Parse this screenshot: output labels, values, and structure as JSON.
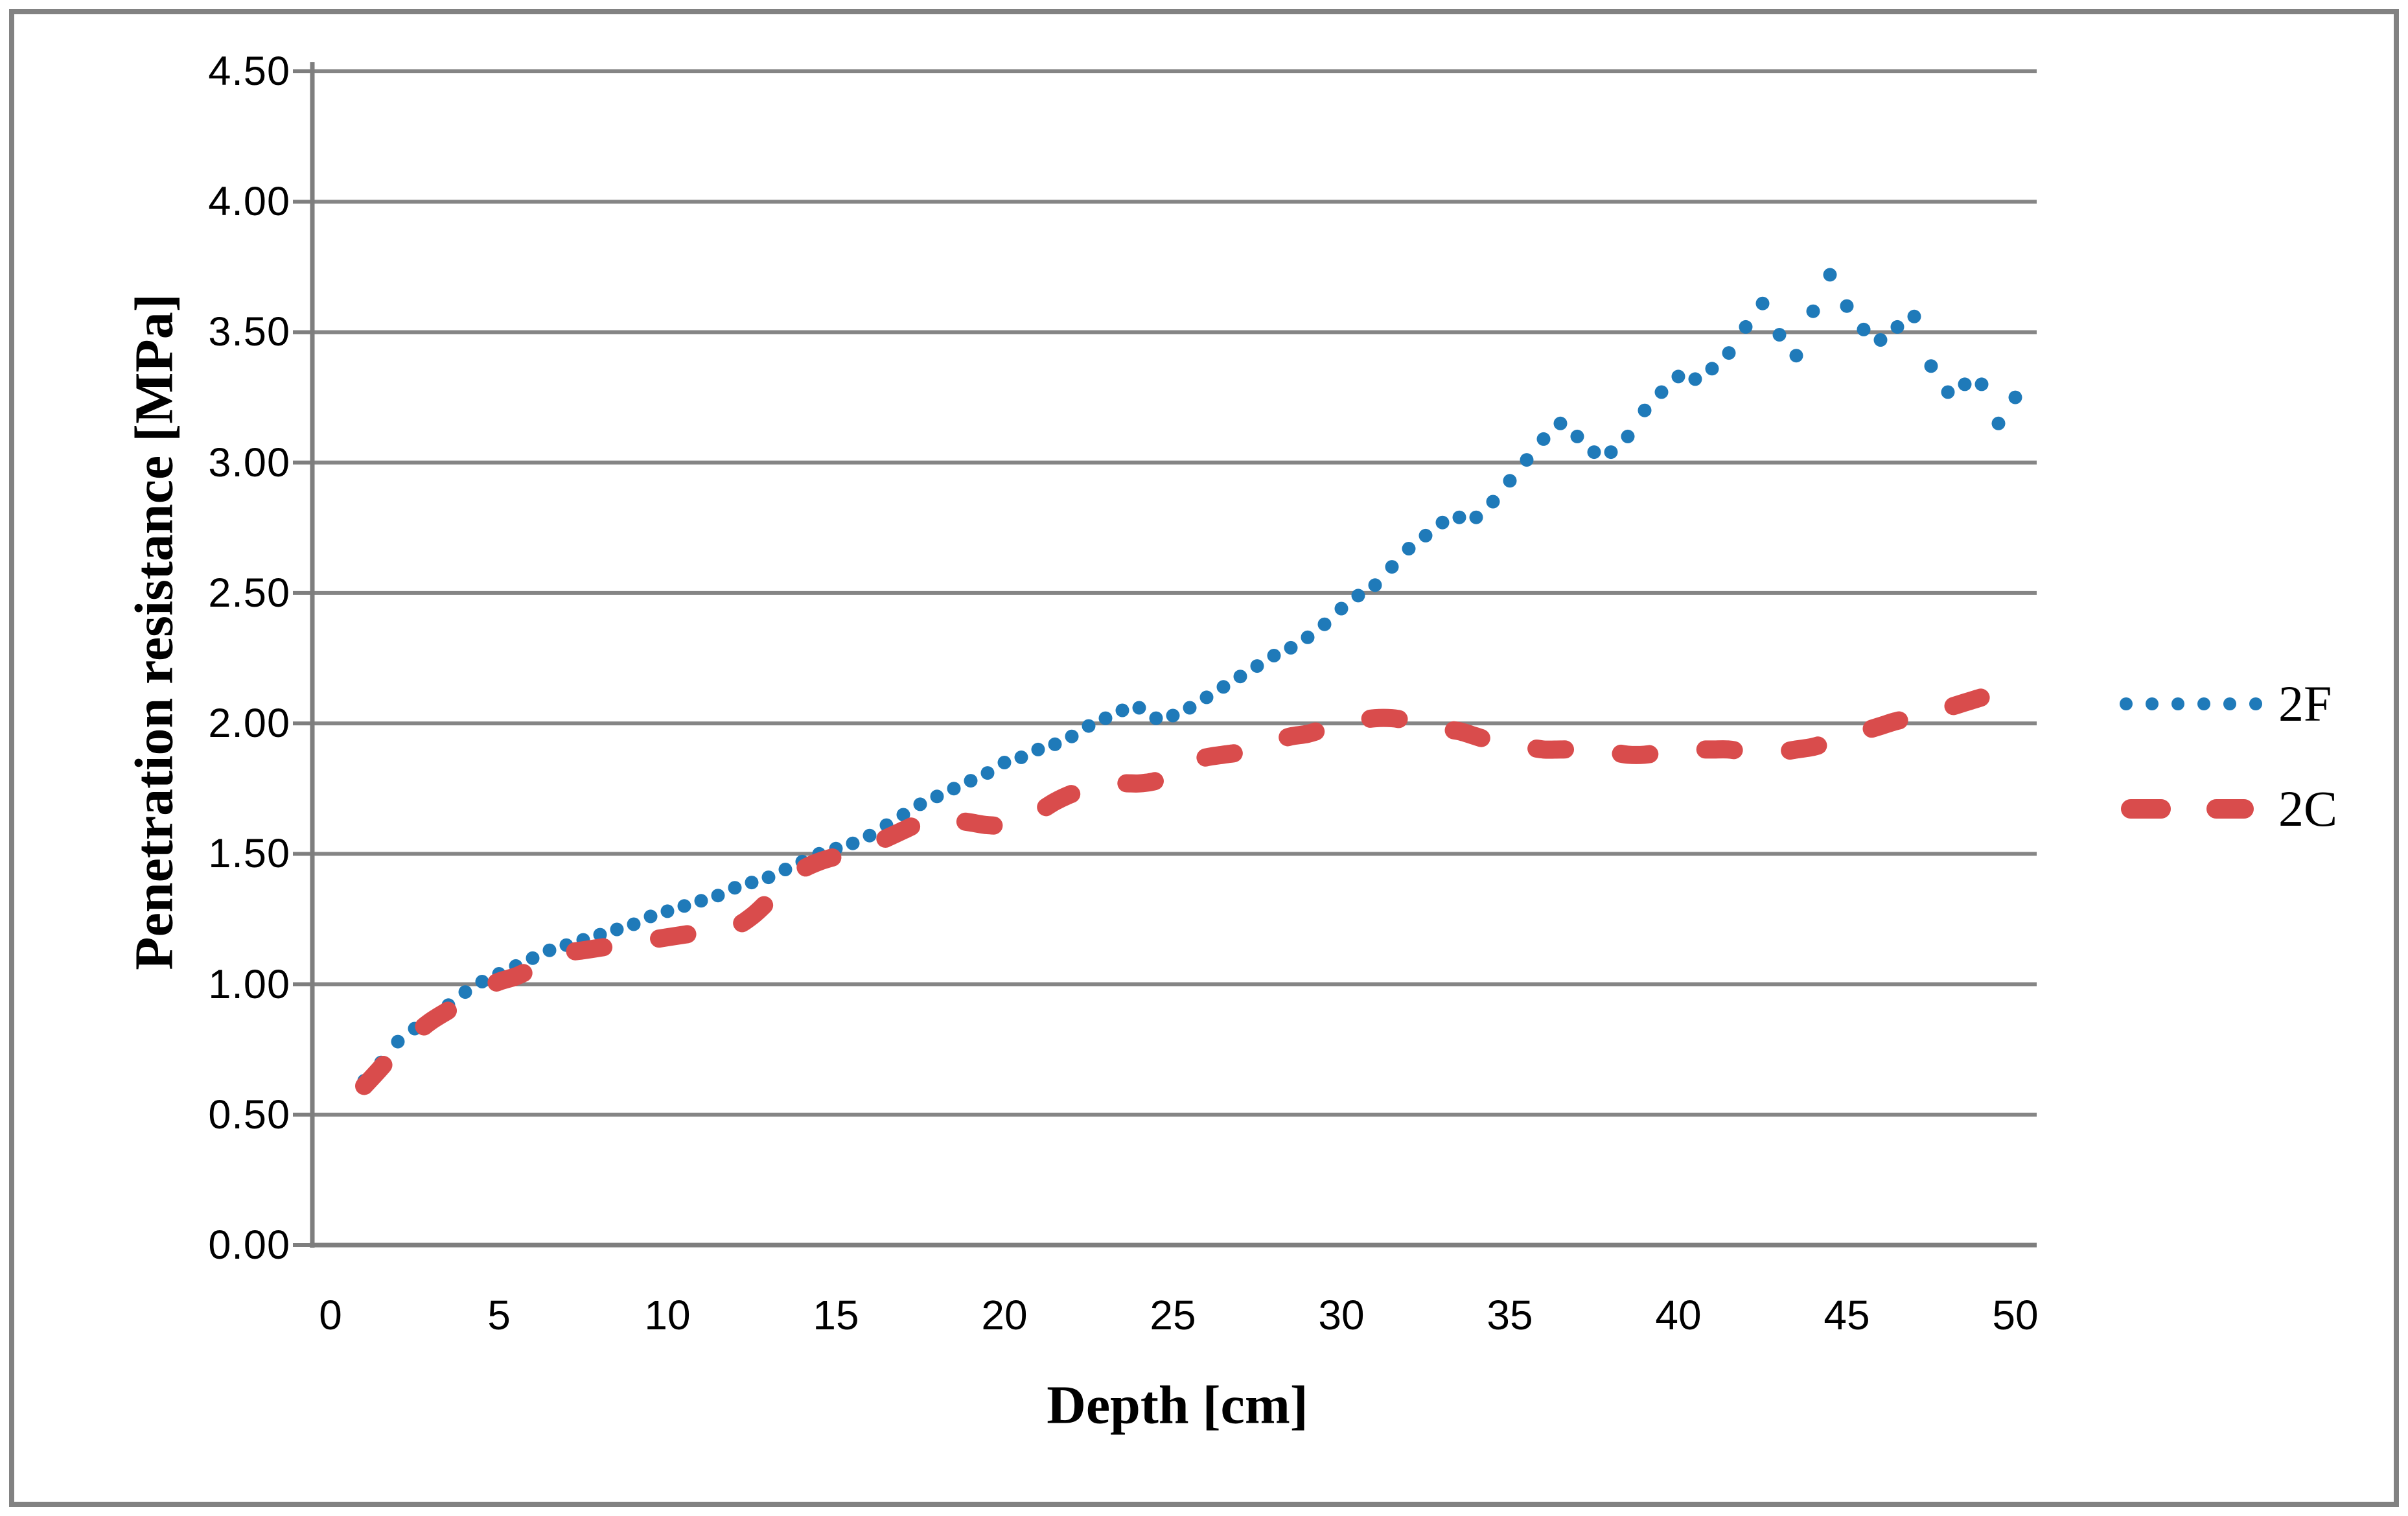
{
  "figure": {
    "background_color": "#FFFFFF",
    "border_color": "#828282",
    "gridline_color": "#858585",
    "axis_color": "#7E7E7E",
    "text_color": "#000000"
  },
  "chart_data": {
    "type": "line",
    "title": "",
    "xlabel": "Depth [cm]",
    "ylabel": "Penetration resistance [MPa]",
    "x_axis": {
      "min": 0,
      "max": 50,
      "tick_interval": 5,
      "tick_labels": [
        "0",
        "5",
        "10",
        "15",
        "20",
        "25",
        "30",
        "35",
        "40",
        "45",
        "50"
      ]
    },
    "y_axis": {
      "min": 0.0,
      "max": 4.5,
      "tick_interval": 0.5,
      "tick_labels": [
        "0.00",
        "0.50",
        "1.00",
        "1.50",
        "2.00",
        "2.50",
        "3.00",
        "3.50",
        "4.00",
        "4.50"
      ]
    },
    "grid": "horizontal-only",
    "legend_position": "right-middle",
    "series": [
      {
        "name": "2F",
        "marker": "dot",
        "line_style": "none",
        "color": "#1F7AB9",
        "x_start": 1.0,
        "x_step": 0.5,
        "values": [
          0.63,
          0.7,
          0.78,
          0.83,
          0.87,
          0.92,
          0.97,
          1.01,
          1.04,
          1.07,
          1.1,
          1.13,
          1.15,
          1.17,
          1.19,
          1.21,
          1.23,
          1.26,
          1.28,
          1.3,
          1.32,
          1.34,
          1.37,
          1.39,
          1.41,
          1.44,
          1.47,
          1.5,
          1.52,
          1.54,
          1.57,
          1.61,
          1.65,
          1.69,
          1.72,
          1.75,
          1.78,
          1.81,
          1.85,
          1.87,
          1.9,
          1.92,
          1.95,
          1.99,
          2.02,
          2.05,
          2.06,
          2.02,
          2.03,
          2.06,
          2.1,
          2.14,
          2.18,
          2.22,
          2.26,
          2.29,
          2.33,
          2.38,
          2.44,
          2.49,
          2.53,
          2.6,
          2.67,
          2.72,
          2.77,
          2.79,
          2.79,
          2.85,
          2.93,
          3.01,
          3.09,
          3.15,
          3.1,
          3.04,
          3.04,
          3.1,
          3.2,
          3.27,
          3.33,
          3.32,
          3.36,
          3.42,
          3.52,
          3.61,
          3.49,
          3.41,
          3.58,
          3.72,
          3.6,
          3.51,
          3.47,
          3.52,
          3.56,
          3.37,
          3.27,
          3.3,
          3.3,
          3.15,
          3.25
        ]
      },
      {
        "name": "2C",
        "marker": "none",
        "line_style": "dashed-smooth",
        "color": "#D94C4C",
        "x_start": 1.0,
        "x_step": 0.5,
        "values": [
          0.61,
          0.68,
          0.76,
          0.81,
          0.86,
          0.9,
          0.94,
          0.98,
          1.01,
          1.03,
          1.06,
          1.09,
          1.12,
          1.13,
          1.14,
          1.15,
          1.16,
          1.17,
          1.18,
          1.19,
          1.2,
          1.21,
          1.22,
          1.26,
          1.32,
          1.39,
          1.44,
          1.47,
          1.49,
          1.51,
          1.53,
          1.56,
          1.59,
          1.62,
          1.64,
          1.63,
          1.62,
          1.61,
          1.61,
          1.63,
          1.66,
          1.7,
          1.73,
          1.75,
          1.76,
          1.77,
          1.77,
          1.78,
          1.81,
          1.85,
          1.87,
          1.88,
          1.89,
          1.91,
          1.93,
          1.95,
          1.96,
          1.98,
          2.0,
          2.01,
          2.02,
          2.02,
          2.01,
          2.0,
          1.98,
          1.97,
          1.95,
          1.93,
          1.92,
          1.91,
          1.9,
          1.9,
          1.9,
          1.89,
          1.89,
          1.88,
          1.88,
          1.89,
          1.9,
          1.9,
          1.9,
          1.9,
          1.89,
          1.89,
          1.89,
          1.9,
          1.91,
          1.93,
          1.95,
          1.97,
          1.99,
          2.01,
          2.02,
          2.04,
          2.06,
          2.08,
          2.1
        ]
      }
    ]
  }
}
